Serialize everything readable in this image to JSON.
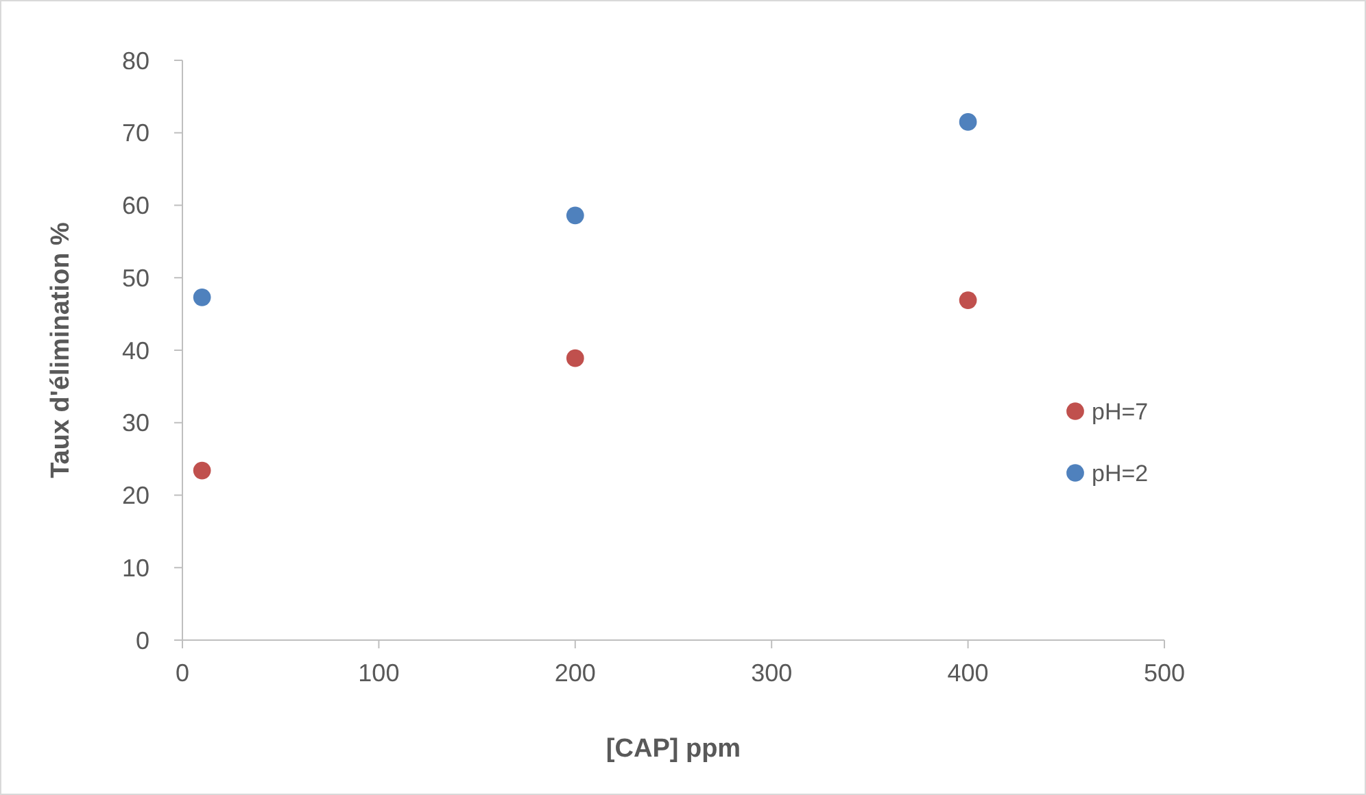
{
  "chart_data": {
    "type": "scatter",
    "xlabel": "[CAP] ppm",
    "ylabel": "Taux d'élimination %",
    "xlim": [
      0,
      500
    ],
    "xticks": [
      0,
      100,
      200,
      300,
      400,
      500
    ],
    "ylim": [
      0,
      80
    ],
    "yticks": [
      0,
      10,
      20,
      30,
      40,
      50,
      60,
      70,
      80
    ],
    "grid": false,
    "legend": "right",
    "marker": "circle",
    "series": [
      {
        "name": "pH=7",
        "color": "#c0504d",
        "x": [
          10,
          200,
          400
        ],
        "values": [
          23.4,
          38.9,
          46.9
        ]
      },
      {
        "name": "pH=2",
        "color": "#4f81bd",
        "x": [
          10,
          200,
          400
        ],
        "values": [
          47.3,
          58.6,
          71.5
        ]
      }
    ]
  }
}
